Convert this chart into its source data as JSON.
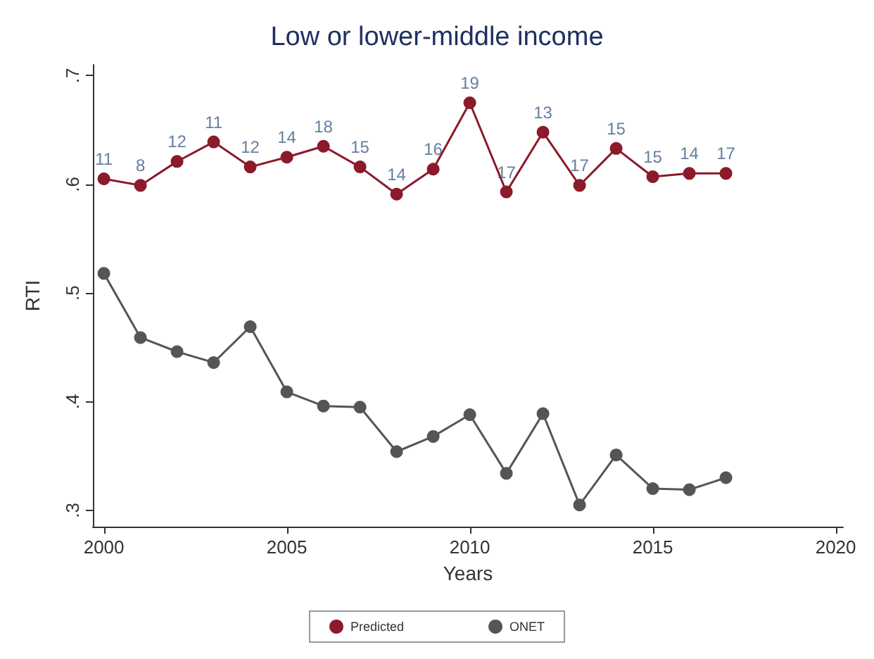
{
  "chart_data": {
    "type": "line",
    "title": "Low or lower-middle income",
    "xlabel": "Years",
    "ylabel": "RTI",
    "x": [
      2000,
      2001,
      2002,
      2003,
      2004,
      2005,
      2006,
      2007,
      2008,
      2009,
      2010,
      2011,
      2012,
      2013,
      2014,
      2015,
      2016,
      2017
    ],
    "series": [
      {
        "name": "Predicted",
        "color": "#8b1a2b",
        "values": [
          0.605,
          0.599,
          0.621,
          0.639,
          0.616,
          0.625,
          0.635,
          0.616,
          0.591,
          0.614,
          0.675,
          0.593,
          0.648,
          0.599,
          0.633,
          0.607,
          0.61,
          0.61
        ]
      },
      {
        "name": "ONET",
        "color": "#555555",
        "values": [
          0.518,
          0.459,
          0.446,
          0.436,
          0.469,
          0.409,
          0.396,
          0.395,
          0.354,
          0.368,
          0.388,
          0.334,
          0.389,
          0.305,
          0.351,
          0.32,
          0.319,
          0.33
        ]
      }
    ],
    "annotations": [
      {
        "text": "11",
        "x": 2000,
        "y": 0.605
      },
      {
        "text": "8",
        "x": 2001,
        "y": 0.599
      },
      {
        "text": "12",
        "x": 2002,
        "y": 0.621
      },
      {
        "text": "11",
        "x": 2003,
        "y": 0.639
      },
      {
        "text": "12",
        "x": 2004,
        "y": 0.616
      },
      {
        "text": "14",
        "x": 2005,
        "y": 0.625
      },
      {
        "text": "18",
        "x": 2006,
        "y": 0.635
      },
      {
        "text": "15",
        "x": 2007,
        "y": 0.616
      },
      {
        "text": "14",
        "x": 2008,
        "y": 0.591
      },
      {
        "text": "16",
        "x": 2009,
        "y": 0.614
      },
      {
        "text": "19",
        "x": 2010,
        "y": 0.675
      },
      {
        "text": "17",
        "x": 2011,
        "y": 0.593
      },
      {
        "text": "13",
        "x": 2012,
        "y": 0.648
      },
      {
        "text": "17",
        "x": 2013,
        "y": 0.599
      },
      {
        "text": "15",
        "x": 2014,
        "y": 0.633
      },
      {
        "text": "15",
        "x": 2015,
        "y": 0.607
      },
      {
        "text": "14",
        "x": 2016,
        "y": 0.61
      },
      {
        "text": "17",
        "x": 2017,
        "y": 0.61
      }
    ],
    "xlim": [
      1999.7,
      2020.2
    ],
    "xticks": [
      2000,
      2005,
      2010,
      2015,
      2020
    ],
    "ylim": [
      0.285,
      0.71
    ],
    "yticks": [
      {
        "value": 0.3,
        "label": ".3"
      },
      {
        "value": 0.4,
        "label": ".4"
      },
      {
        "value": 0.5,
        "label": ".5"
      },
      {
        "value": 0.6,
        "label": ".6"
      },
      {
        "value": 0.7,
        "label": ".7"
      }
    ],
    "grid": false,
    "legend": "bottom",
    "marker": "circle",
    "line_style": "solid"
  }
}
